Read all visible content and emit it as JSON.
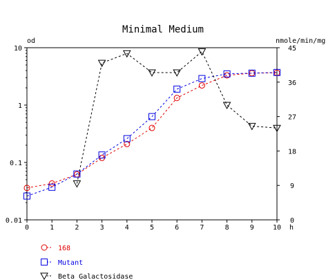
{
  "chart_data": {
    "type": "line",
    "title": "Minimal Medium",
    "ylabel_left": "od",
    "ylabel_right": "nmole/min/mg",
    "xunit": "h",
    "x": [
      0,
      1,
      2,
      3,
      4,
      5,
      6,
      7,
      8,
      9,
      10
    ],
    "xlim": [
      0,
      10
    ],
    "ylim_left": [
      0.01,
      10
    ],
    "ylim_right": [
      0,
      45
    ],
    "left_scale": "log",
    "right_scale": "linear",
    "x_ticks": [
      "0",
      "1",
      "2",
      "3",
      "4",
      "5",
      "6",
      "7",
      "8",
      "9",
      "10"
    ],
    "left_ticks": [
      {
        "value": 10,
        "label": "10"
      },
      {
        "value": 1,
        "label": "1"
      },
      {
        "value": 0.1,
        "label": "0.1"
      },
      {
        "value": 0.01,
        "label": "0.01"
      }
    ],
    "right_ticks": [
      {
        "value": 45,
        "label": "45"
      },
      {
        "value": 36,
        "label": "36"
      },
      {
        "value": 27,
        "label": "27"
      },
      {
        "value": 18,
        "label": "18"
      },
      {
        "value": 9,
        "label": "9"
      },
      {
        "value": 0,
        "label": "0"
      }
    ],
    "grid": false,
    "legend_position": "bottom-left",
    "series": [
      {
        "name": "168",
        "axis": "left",
        "marker": "circle",
        "color": "#e00000",
        "line_style": "dashed",
        "values": [
          0.036,
          0.043,
          0.062,
          0.12,
          0.21,
          0.4,
          1.33,
          2.2,
          3.3,
          3.6,
          3.65
        ]
      },
      {
        "name": "Mutant",
        "axis": "left",
        "marker": "square",
        "color": "#0000e0",
        "line_style": "dashed",
        "values": [
          0.026,
          0.037,
          0.063,
          0.135,
          0.26,
          0.63,
          1.9,
          2.9,
          3.5,
          3.6,
          3.7
        ]
      },
      {
        "name": "Beta Galactosidase",
        "axis": "right",
        "marker": "triangle-down",
        "color": "#000000",
        "line_style": "dashed",
        "values": [
          null,
          null,
          9.5,
          41,
          43.5,
          38.5,
          38.5,
          44,
          30,
          24.5,
          24
        ]
      }
    ]
  }
}
